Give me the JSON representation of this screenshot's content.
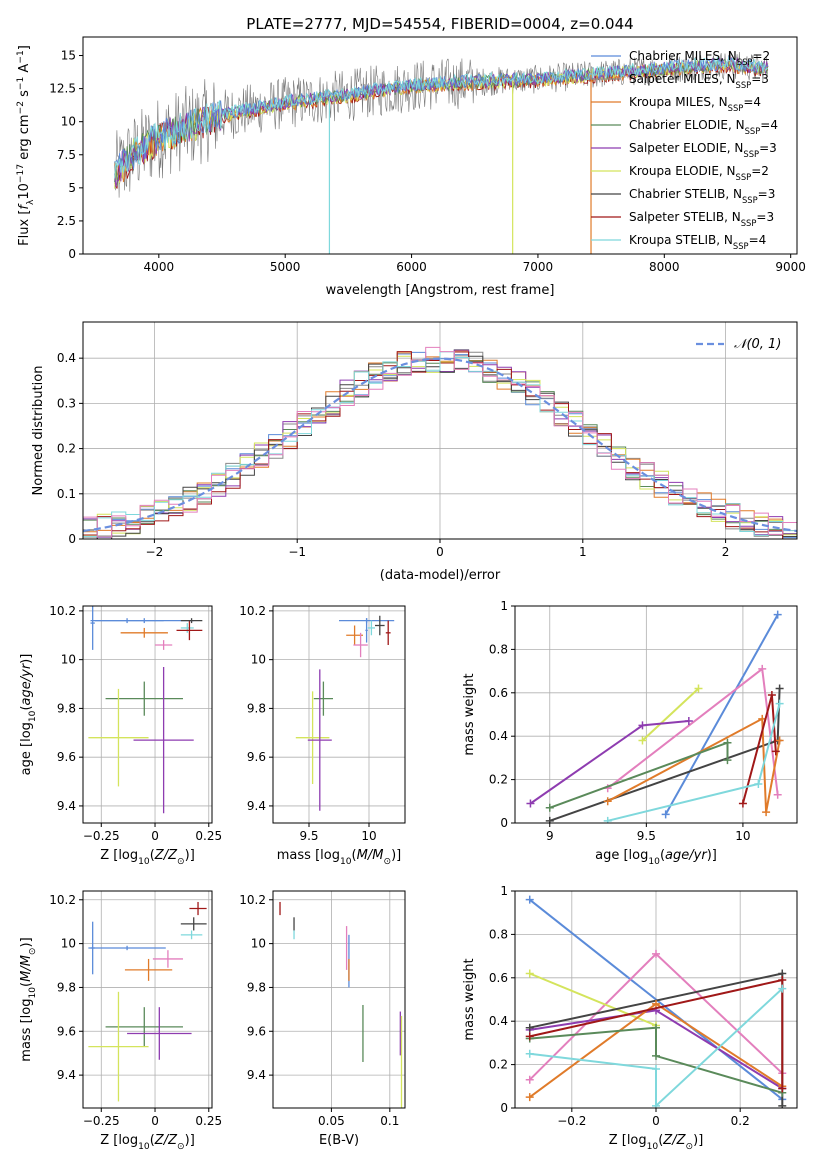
{
  "colors": {
    "Chabrier MILES": "#5b8bd9",
    "Salpeter MILES": "#888888",
    "Kroupa MILES": "#e07b2a",
    "Chabrier ELODIE": "#5a8a5a",
    "Salpeter ELODIE": "#8e3cb0",
    "Kroupa ELODIE": "#d4e45c",
    "Chabrier STELIB": "#444444",
    "Salpeter STELIB": "#a01818",
    "Kroupa STELIB": "#7fd8dc",
    "pink": "#e37fbd",
    "normal": "#6a8fdf"
  },
  "chart_data": [
    {
      "id": "spectrum",
      "type": "line",
      "title": "PLATE=2777, MJD=54554, FIBERID=0004, z=0.044",
      "xlabel": "wavelength [Angstrom, rest frame]",
      "ylabel": "Flux [fλ10⁻¹⁷ erg cm⁻² s⁻¹ A⁻¹]",
      "xlim": [
        3400,
        9050
      ],
      "ylim": [
        0,
        16.4
      ],
      "xticks": [
        4000,
        5000,
        6000,
        7000,
        8000,
        9000
      ],
      "yticks": [
        0.0,
        2.5,
        5.0,
        7.5,
        10.0,
        12.5,
        15.0
      ],
      "data_range": [
        3650,
        8820
      ],
      "continuum_knots": [
        [
          3650,
          6.0
        ],
        [
          3800,
          7.5
        ],
        [
          4000,
          8.8
        ],
        [
          4500,
          10.5
        ],
        [
          5000,
          11.4
        ],
        [
          5500,
          12.0
        ],
        [
          6000,
          12.7
        ],
        [
          6500,
          13.0
        ],
        [
          7000,
          13.2
        ],
        [
          7500,
          13.6
        ],
        [
          8000,
          14.0
        ],
        [
          8500,
          14.3
        ],
        [
          8820,
          14.0
        ]
      ],
      "legend": [
        {
          "label": "Chabrier MILES, N",
          "nssp": "2",
          "color_key": "Chabrier MILES"
        },
        {
          "label": "Salpeter MILES, N",
          "nssp": "3",
          "color_key": "Salpeter MILES"
        },
        {
          "label": "Kroupa MILES, N",
          "nssp": "4",
          "color_key": "Kroupa MILES"
        },
        {
          "label": "Chabrier ELODIE, N",
          "nssp": "4",
          "color_key": "Chabrier ELODIE"
        },
        {
          "label": "Salpeter ELODIE, N",
          "nssp": "3",
          "color_key": "Salpeter ELODIE"
        },
        {
          "label": "Kroupa ELODIE, N",
          "nssp": "2",
          "color_key": "Kroupa ELODIE"
        },
        {
          "label": "Chabrier STELIB, N",
          "nssp": "3",
          "color_key": "Chabrier STELIB"
        },
        {
          "label": "Salpeter STELIB, N",
          "nssp": "3",
          "color_key": "Salpeter STELIB"
        },
        {
          "label": "Kroupa STELIB, N",
          "nssp": "4",
          "color_key": "Kroupa STELIB"
        }
      ],
      "legend_subscript": "SSP",
      "drops": [
        {
          "x": 5350,
          "color_key": "Kroupa STELIB"
        },
        {
          "x": 6800,
          "color_key": "Kroupa ELODIE"
        },
        {
          "x": 7420,
          "color_key": "Kroupa MILES"
        }
      ]
    },
    {
      "id": "hist",
      "type": "line",
      "xlabel": "(data-model)/error",
      "ylabel": "Normed distribution",
      "xlim": [
        -2.5,
        2.5
      ],
      "ylim": [
        0,
        0.48
      ],
      "xticks": [
        -2,
        -1,
        0,
        1,
        2
      ],
      "yticks": [
        0.0,
        0.1,
        0.2,
        0.3,
        0.4
      ],
      "grid": true,
      "bin_width": 0.1,
      "legend": "𝒩(0, 1)",
      "legend_position": "top-right"
    },
    {
      "id": "age_vs_Z",
      "type": "scatter",
      "xlabel": "Z [log₁₀(Z/Z⊙)]",
      "ylabel": "age [log₁₀(age/yr)]",
      "xlim": [
        -0.335,
        0.265
      ],
      "ylim": [
        9.33,
        10.22
      ],
      "xticks": [
        -0.25,
        0.0,
        0.25
      ],
      "yticks": [
        9.4,
        9.6,
        9.8,
        10.0,
        10.2
      ],
      "grid": true,
      "points": [
        {
          "x": -0.05,
          "y": 10.16,
          "ex": 0.23,
          "ey": 0.01,
          "c": "Chabrier MILES"
        },
        {
          "x": -0.05,
          "y": 10.11,
          "ex": 0.11,
          "ey": 0.02,
          "c": "Kroupa MILES"
        },
        {
          "x": 0.15,
          "y": 10.13,
          "ex": 0.03,
          "ey": 0.02,
          "c": "Kroupa STELIB"
        },
        {
          "x": 0.16,
          "y": 10.12,
          "ex": 0.06,
          "ey": 0.04,
          "c": "Salpeter STELIB"
        },
        {
          "x": 0.17,
          "y": 10.16,
          "ex": 0.05,
          "ey": 0.01,
          "c": "Chabrier STELIB"
        },
        {
          "x": 0.04,
          "y": 10.06,
          "ex": 0.04,
          "ey": 0.02,
          "c": "pink"
        },
        {
          "x": -0.13,
          "y": 10.16,
          "ex": 0.17,
          "ey": 0.01,
          "c": "Chabrier MILES"
        },
        {
          "x": -0.05,
          "y": 9.84,
          "ex": 0.18,
          "ey": 0.07,
          "c": "Chabrier ELODIE"
        },
        {
          "x": -0.17,
          "y": 9.68,
          "ex": 0.14,
          "ey": 0.2,
          "c": "Kroupa ELODIE"
        },
        {
          "x": 0.04,
          "y": 9.67,
          "ex": 0.14,
          "ey": 0.3,
          "c": "Salpeter ELODIE"
        },
        {
          "x": -0.29,
          "y": 10.15,
          "ex": 0.01,
          "ey": 0.11,
          "c": "Chabrier MILES"
        }
      ]
    },
    {
      "id": "age_vs_mass",
      "type": "scatter",
      "xlabel": "mass [log₁₀(M/M⊙)]",
      "ylabel": "",
      "xlim": [
        9.2,
        10.3
      ],
      "ylim": [
        9.33,
        10.22
      ],
      "xticks": [
        9.5,
        10.0
      ],
      "yticks": [
        9.4,
        9.6,
        9.8,
        10.0,
        10.2
      ],
      "grid": true,
      "points": [
        {
          "x": 9.98,
          "y": 10.16,
          "ex": 0.23,
          "ey": 0.01,
          "c": "Chabrier MILES"
        },
        {
          "x": 9.88,
          "y": 10.1,
          "ex": 0.07,
          "ey": 0.04,
          "c": "Kroupa MILES"
        },
        {
          "x": 9.93,
          "y": 10.06,
          "ex": 0.06,
          "ey": 0.05,
          "c": "pink"
        },
        {
          "x": 10.02,
          "y": 10.13,
          "ex": 0.03,
          "ey": 0.03,
          "c": "Kroupa STELIB"
        },
        {
          "x": 10.16,
          "y": 10.11,
          "ex": 0.02,
          "ey": 0.05,
          "c": "Salpeter STELIB"
        },
        {
          "x": 10.09,
          "y": 10.14,
          "ex": 0.04,
          "ey": 0.04,
          "c": "Chabrier STELIB"
        },
        {
          "x": 9.62,
          "y": 9.84,
          "ex": 0.08,
          "ey": 0.07,
          "c": "Chabrier ELODIE"
        },
        {
          "x": 9.53,
          "y": 9.68,
          "ex": 0.14,
          "ey": 0.19,
          "c": "Kroupa ELODIE"
        },
        {
          "x": 9.59,
          "y": 9.67,
          "ex": 0.1,
          "ey": 0.29,
          "c": "Salpeter ELODIE"
        },
        {
          "x": 9.98,
          "y": 10.12,
          "ex": 0.01,
          "ey": 0.05,
          "c": "Chabrier MILES"
        }
      ]
    },
    {
      "id": "weight_vs_age",
      "type": "line",
      "xlabel": "age [log₁₀(age/yr)]",
      "ylabel": "mass weight",
      "xlim": [
        8.82,
        10.28
      ],
      "ylim": [
        0,
        1.0
      ],
      "xticks": [
        9.0,
        9.5,
        10.0
      ],
      "yticks": [
        0.0,
        0.2,
        0.4,
        0.6,
        0.8,
        1.0
      ],
      "grid": true,
      "series": [
        {
          "c": "Chabrier MILES",
          "pts": [
            [
              9.6,
              0.04
            ],
            [
              10.18,
              0.96
            ]
          ]
        },
        {
          "c": "pink",
          "pts": [
            [
              9.3,
              0.16
            ],
            [
              10.1,
              0.71
            ],
            [
              10.18,
              0.13
            ]
          ]
        },
        {
          "c": "Kroupa ELODIE",
          "pts": [
            [
              9.48,
              0.38
            ],
            [
              9.77,
              0.62
            ]
          ]
        },
        {
          "c": "Salpeter ELODIE",
          "pts": [
            [
              8.9,
              0.09
            ],
            [
              9.48,
              0.45
            ],
            [
              9.72,
              0.47
            ]
          ]
        },
        {
          "c": "Chabrier STELIB",
          "pts": [
            [
              9.0,
              0.01
            ],
            [
              10.18,
              0.38
            ],
            [
              10.19,
              0.62
            ]
          ]
        },
        {
          "c": "Kroupa MILES",
          "pts": [
            [
              9.3,
              0.1
            ],
            [
              10.1,
              0.48
            ],
            [
              10.12,
              0.05
            ],
            [
              10.19,
              0.38
            ]
          ]
        },
        {
          "c": "Chabrier ELODIE",
          "pts": [
            [
              9.0,
              0.07
            ],
            [
              9.92,
              0.37
            ],
            [
              9.92,
              0.29
            ]
          ]
        },
        {
          "c": "Salpeter STELIB",
          "pts": [
            [
              10.0,
              0.09
            ],
            [
              10.15,
              0.59
            ],
            [
              10.17,
              0.33
            ]
          ]
        },
        {
          "c": "Kroupa STELIB",
          "pts": [
            [
              9.3,
              0.01
            ],
            [
              10.08,
              0.18
            ],
            [
              10.19,
              0.55
            ]
          ]
        }
      ]
    },
    {
      "id": "mass_vs_Z",
      "type": "scatter",
      "xlabel": "Z [log₁₀(Z/Z⊙)]",
      "ylabel": "mass [log₁₀(M/M⊙)]",
      "xlim": [
        -0.335,
        0.265
      ],
      "ylim": [
        9.25,
        10.24
      ],
      "xticks": [
        -0.25,
        0.0,
        0.25
      ],
      "yticks": [
        9.4,
        9.6,
        9.8,
        10.0,
        10.2
      ],
      "grid": true,
      "points": [
        {
          "x": 0.2,
          "y": 10.16,
          "ex": 0.04,
          "ey": 0.03,
          "c": "Salpeter STELIB"
        },
        {
          "x": 0.18,
          "y": 10.09,
          "ex": 0.06,
          "ey": 0.03,
          "c": "Chabrier STELIB"
        },
        {
          "x": 0.17,
          "y": 10.04,
          "ex": 0.05,
          "ey": 0.02,
          "c": "Kroupa STELIB"
        },
        {
          "x": -0.13,
          "y": 9.98,
          "ex": 0.18,
          "ey": 0.01,
          "c": "Chabrier MILES"
        },
        {
          "x": -0.29,
          "y": 9.98,
          "ex": 0.01,
          "ey": 0.12,
          "c": "Chabrier MILES"
        },
        {
          "x": 0.06,
          "y": 9.93,
          "ex": 0.07,
          "ey": 0.04,
          "c": "pink"
        },
        {
          "x": -0.03,
          "y": 9.88,
          "ex": 0.11,
          "ey": 0.05,
          "c": "Kroupa MILES"
        },
        {
          "x": -0.05,
          "y": 9.62,
          "ex": 0.18,
          "ey": 0.09,
          "c": "Chabrier ELODIE"
        },
        {
          "x": 0.02,
          "y": 9.59,
          "ex": 0.15,
          "ey": 0.12,
          "c": "Salpeter ELODIE"
        },
        {
          "x": -0.17,
          "y": 9.53,
          "ex": 0.14,
          "ey": 0.25,
          "c": "Kroupa ELODIE"
        }
      ]
    },
    {
      "id": "mass_vs_ebv",
      "type": "scatter",
      "xlabel": "E(B-V)",
      "ylabel": "",
      "xlim": [
        0.0,
        0.113
      ],
      "ylim": [
        9.25,
        10.24
      ],
      "xticks": [
        0.05,
        0.1
      ],
      "yticks": [
        9.4,
        9.6,
        9.8,
        10.0,
        10.2
      ],
      "grid": true,
      "points": [
        {
          "x": 0.006,
          "y": 10.16,
          "ex": 0.0,
          "ey": 0.03,
          "c": "Salpeter STELIB"
        },
        {
          "x": 0.018,
          "y": 10.09,
          "ex": 0.0,
          "ey": 0.03,
          "c": "Chabrier STELIB"
        },
        {
          "x": 0.018,
          "y": 10.04,
          "ex": 0.0,
          "ey": 0.02,
          "c": "Kroupa STELIB"
        },
        {
          "x": 0.063,
          "y": 9.98,
          "ex": 0.0,
          "ey": 0.1,
          "c": "pink"
        },
        {
          "x": 0.065,
          "y": 9.92,
          "ex": 0.0,
          "ey": 0.12,
          "c": "Chabrier MILES"
        },
        {
          "x": 0.065,
          "y": 9.88,
          "ex": 0.0,
          "ey": 0.05,
          "c": "Kroupa MILES"
        },
        {
          "x": 0.077,
          "y": 9.59,
          "ex": 0.0,
          "ey": 0.13,
          "c": "Chabrier ELODIE"
        },
        {
          "x": 0.109,
          "y": 9.59,
          "ex": 0.0,
          "ey": 0.1,
          "c": "Salpeter ELODIE"
        },
        {
          "x": 0.11,
          "y": 9.45,
          "ex": 0.0,
          "ey": 0.22,
          "c": "Kroupa ELODIE"
        }
      ]
    },
    {
      "id": "weight_vs_Z",
      "type": "line",
      "xlabel": "Z [log₁₀(Z/Z⊙)]",
      "ylabel": "mass weight",
      "xlim": [
        -0.335,
        0.335
      ],
      "ylim": [
        0,
        1.0
      ],
      "xticks": [
        -0.2,
        0.0,
        0.2
      ],
      "yticks": [
        0.0,
        0.2,
        0.4,
        0.6,
        0.8,
        1.0
      ],
      "grid": true,
      "series": [
        {
          "c": "Chabrier MILES",
          "pts": [
            [
              -0.3,
              0.96
            ],
            [
              0.3,
              0.04
            ]
          ]
        },
        {
          "c": "pink",
          "pts": [
            [
              -0.3,
              0.13
            ],
            [
              0.0,
              0.71
            ],
            [
              0.3,
              0.16
            ]
          ]
        },
        {
          "c": "Kroupa ELODIE",
          "pts": [
            [
              -0.3,
              0.62
            ],
            [
              0.0,
              0.38
            ]
          ]
        },
        {
          "c": "Salpeter ELODIE",
          "pts": [
            [
              -0.3,
              0.36
            ],
            [
              0.0,
              0.45
            ],
            [
              0.3,
              0.09
            ]
          ]
        },
        {
          "c": "Chabrier STELIB",
          "pts": [
            [
              -0.3,
              0.37
            ],
            [
              0.3,
              0.62
            ],
            [
              0.3,
              0.01
            ]
          ]
        },
        {
          "c": "Kroupa MILES",
          "pts": [
            [
              -0.3,
              0.05
            ],
            [
              0.0,
              0.48
            ],
            [
              0.3,
              0.1
            ]
          ]
        },
        {
          "c": "Chabrier ELODIE",
          "pts": [
            [
              -0.3,
              0.32
            ],
            [
              0.0,
              0.37
            ],
            [
              0.0,
              0.24
            ],
            [
              0.3,
              0.07
            ]
          ]
        },
        {
          "c": "Salpeter STELIB",
          "pts": [
            [
              -0.3,
              0.33
            ],
            [
              0.3,
              0.59
            ],
            [
              0.3,
              0.09
            ]
          ]
        },
        {
          "c": "Kroupa STELIB",
          "pts": [
            [
              -0.3,
              0.25
            ],
            [
              0.0,
              0.18
            ],
            [
              0.0,
              0.01
            ],
            [
              0.3,
              0.55
            ]
          ]
        }
      ]
    }
  ]
}
